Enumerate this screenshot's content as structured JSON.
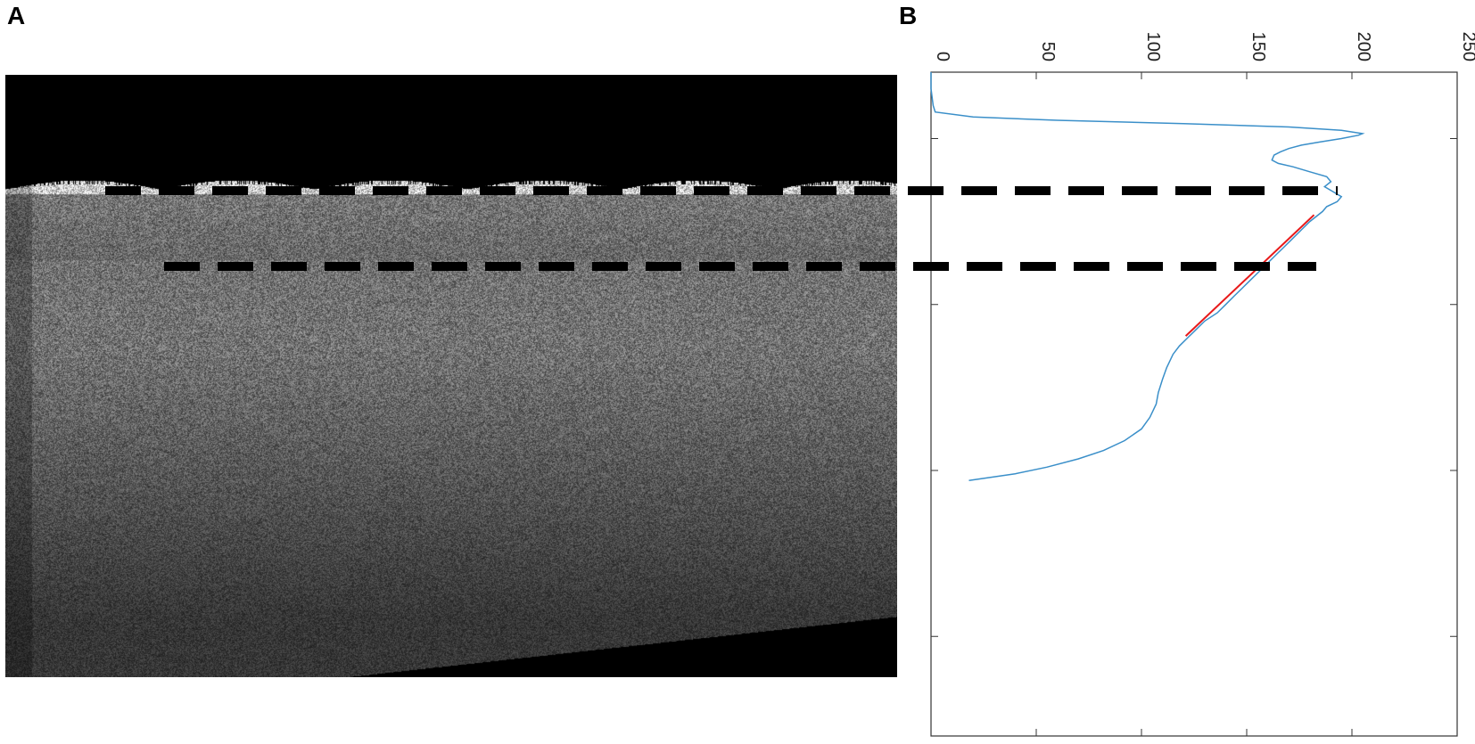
{
  "panels": {
    "a_label": "A",
    "b_label": "B"
  },
  "colors": {
    "profile_line": "#3a8fc9",
    "fit_line": "#e8191a",
    "guide_line": "#000000",
    "axis": "#333333"
  },
  "image": {
    "description_icon": "oct-scan-image"
  },
  "chart_data": {
    "type": "line",
    "orientation": "rotated",
    "x_axis_ticks": [
      0,
      50,
      100,
      150,
      200,
      250
    ],
    "xlim": [
      0,
      250
    ],
    "ylim": [
      0,
      400
    ],
    "y_ticks_unlabeled": [
      40,
      140,
      240,
      340
    ],
    "grid": false,
    "series": [
      {
        "role": "intensity-profile",
        "x": [
          0,
          0,
          1,
          2,
          20,
          60,
          120,
          170,
          195,
          205,
          203,
          195,
          185,
          176,
          170,
          166,
          163,
          162,
          165,
          172,
          180,
          188,
          190,
          187,
          191,
          195,
          193,
          188,
          186,
          180,
          176,
          172,
          168,
          164,
          160,
          156,
          152,
          148,
          144,
          140,
          136,
          130,
          126,
          122,
          118,
          115,
          112,
          110,
          108,
          107,
          104,
          100,
          92,
          82,
          70,
          55,
          40,
          18
        ],
        "y": [
          0,
          10,
          20,
          24,
          27,
          29,
          31,
          33,
          35,
          37,
          38,
          40,
          42,
          44,
          46,
          48,
          50,
          53,
          55,
          57,
          60,
          63,
          66,
          69,
          72,
          75,
          78,
          81,
          84,
          90,
          95,
          100,
          105,
          110,
          115,
          120,
          125,
          130,
          135,
          140,
          145,
          150,
          155,
          160,
          165,
          170,
          178,
          185,
          193,
          200,
          208,
          215,
          222,
          228,
          233,
          238,
          242,
          246
        ]
      },
      {
        "role": "linear-fit",
        "x": [
          182,
          121
        ],
        "y": [
          86,
          159
        ]
      }
    ]
  }
}
